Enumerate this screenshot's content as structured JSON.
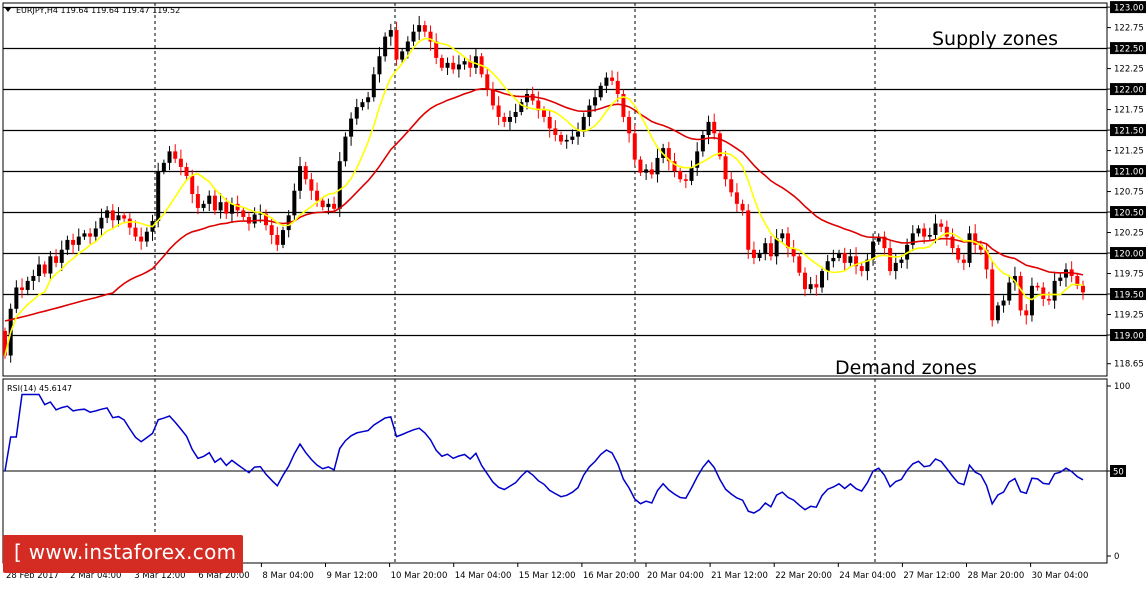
{
  "header": {
    "text": "EURJPY,H4  119.64 119.64 119.47 119.52"
  },
  "labels": {
    "supply": "Supply zones",
    "demand": "Demand zones"
  },
  "rsi": {
    "title": "RSI(14) 45.6147",
    "levels": [
      "100",
      "50",
      "0"
    ]
  },
  "logo": {
    "text": "[ www.instaforex.com ]"
  },
  "colors": {
    "bull": "#000000",
    "bear": "#ff0000",
    "ma_fast": "#ffff00",
    "ma_slow": "#dd0000",
    "rsi": "#0000cc",
    "logo_bg": "#d42b23"
  },
  "chart_data": {
    "type": "candlestick",
    "price_axis": {
      "min": 118.5,
      "max": 123.05,
      "ticks": [
        "123.00",
        "122.75",
        "122.50",
        "122.25",
        "122.00",
        "121.75",
        "121.50",
        "121.25",
        "121.00",
        "120.75",
        "120.50",
        "120.25",
        "120.00",
        "119.75",
        "119.50",
        "119.25",
        "119.00",
        "118.65"
      ],
      "highlighted_levels": [
        "123.00",
        "122.50",
        "122.00",
        "121.50",
        "121.00",
        "120.50",
        "120.00",
        "119.50",
        "119.00"
      ]
    },
    "x_labels": [
      "28 Feb 2017",
      "2 Mar 04:00",
      "3 Mar 12:00",
      "6 Mar 20:00",
      "8 Mar 04:00",
      "9 Mar 12:00",
      "10 Mar 20:00",
      "14 Mar 04:00",
      "15 Mar 12:00",
      "16 Mar 20:00",
      "20 Mar 04:00",
      "21 Mar 12:00",
      "22 Mar 20:00",
      "24 Mar 04:00",
      "27 Mar 12:00",
      "28 Mar 20:00",
      "30 Mar 04:00"
    ],
    "close": [
      118.75,
      119.32,
      119.58,
      119.55,
      119.66,
      119.72,
      119.86,
      119.75,
      119.96,
      119.88,
      120.04,
      120.16,
      120.1,
      120.2,
      120.24,
      120.2,
      120.3,
      120.43,
      120.52,
      120.4,
      120.46,
      120.42,
      120.31,
      120.2,
      120.14,
      120.26,
      120.39,
      121.0,
      121.1,
      121.24,
      121.15,
      121.05,
      120.94,
      120.72,
      120.55,
      120.6,
      120.7,
      120.52,
      120.62,
      120.48,
      120.6,
      120.52,
      120.44,
      120.36,
      120.47,
      120.48,
      120.34,
      120.22,
      120.1,
      120.28,
      120.46,
      120.76,
      121.06,
      120.9,
      120.76,
      120.64,
      120.56,
      120.6,
      120.54,
      121.12,
      121.42,
      121.64,
      121.78,
      121.84,
      121.9,
      122.18,
      122.4,
      122.64,
      122.72,
      122.36,
      122.46,
      122.58,
      122.7,
      122.78,
      122.7,
      122.58,
      122.38,
      122.26,
      122.32,
      122.24,
      122.3,
      122.34,
      122.26,
      122.4,
      122.18,
      122.0,
      121.8,
      121.66,
      121.6,
      121.66,
      121.72,
      121.84,
      121.94,
      121.86,
      121.74,
      121.66,
      121.52,
      121.44,
      121.36,
      121.38,
      121.42,
      121.48,
      121.66,
      121.8,
      121.9,
      122.04,
      122.14,
      122.1,
      121.94,
      121.66,
      121.46,
      121.14,
      120.98,
      121.02,
      120.96,
      121.16,
      121.28,
      121.12,
      121.0,
      120.9,
      120.88,
      121.04,
      121.24,
      121.44,
      121.6,
      121.46,
      121.18,
      120.9,
      120.74,
      120.6,
      120.52,
      120.04,
      119.94,
      120.0,
      120.12,
      119.96,
      120.18,
      120.24,
      120.06,
      119.96,
      119.76,
      119.56,
      119.62,
      119.58,
      119.78,
      119.9,
      119.94,
      120.0,
      119.88,
      119.96,
      119.84,
      119.78,
      119.92,
      120.14,
      120.2,
      120.06,
      119.78,
      119.88,
      119.92,
      120.1,
      120.24,
      120.3,
      120.2,
      120.22,
      120.36,
      120.32,
      120.2,
      120.06,
      119.92,
      119.88,
      120.24,
      120.1,
      120.04,
      119.8,
      119.18,
      119.36,
      119.42,
      119.64,
      119.72,
      119.3,
      119.24,
      119.6,
      119.58,
      119.44,
      119.42,
      119.66,
      119.7,
      119.8,
      119.72,
      119.6,
      119.52
    ]
  }
}
